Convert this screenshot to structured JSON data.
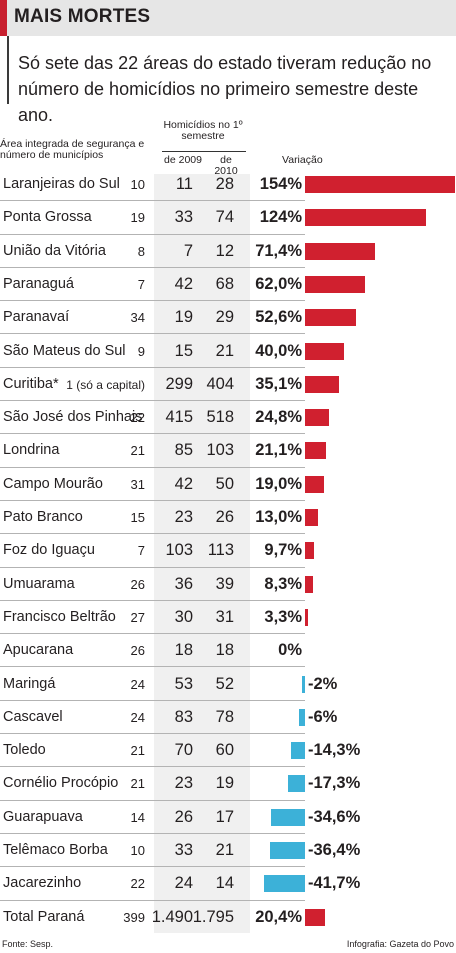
{
  "header": {
    "title": "MAIS MORTES"
  },
  "subtitle": "Só sete das 22 áreas do estado tiveram redução no número de homicídios no primeiro semestre deste ano.",
  "columns": {
    "area": "Área integrada de segurança e número de municípios",
    "homicidios": "Homicídios no 1º semestre",
    "y2009": "de 2009",
    "y2010": "de 2010",
    "variacao": "Variação"
  },
  "colors": {
    "positive": "#d0202f",
    "negative": "#3cb1d8",
    "accent": "#c8202f"
  },
  "chart_data": {
    "type": "bar",
    "title": "MAIS MORTES",
    "categories": [
      "Laranjeiras do Sul",
      "Ponta Grossa",
      "União da Vitória",
      "Paranaguá",
      "Paranavaí",
      "São Mateus do Sul",
      "Curitiba*",
      "São José dos Pinhais",
      "Londrina",
      "Campo Mourão",
      "Pato Branco",
      "Foz do Iguaçu",
      "Umuarama",
      "Francisco Beltrão",
      "Apucarana",
      "Maringá",
      "Cascavel",
      "Toledo",
      "Cornélio Procópio",
      "Guarapuava",
      "Telêmaco Borba",
      "Jacarezinho",
      "Total Paraná"
    ],
    "municipios": [
      "10",
      "19",
      "8",
      "7",
      "34",
      "9",
      "1 (só a capital)",
      "22",
      "21",
      "31",
      "15",
      "7",
      "26",
      "27",
      "26",
      "24",
      "24",
      "21",
      "21",
      "14",
      "10",
      "22",
      "399"
    ],
    "hom_2009": [
      "11",
      "33",
      "7",
      "42",
      "19",
      "15",
      "299",
      "415",
      "85",
      "42",
      "23",
      "103",
      "36",
      "30",
      "18",
      "53",
      "83",
      "70",
      "23",
      "26",
      "33",
      "24",
      "1.490"
    ],
    "hom_2010": [
      "28",
      "74",
      "12",
      "68",
      "29",
      "21",
      "404",
      "518",
      "103",
      "50",
      "26",
      "113",
      "39",
      "31",
      "18",
      "52",
      "78",
      "60",
      "19",
      "17",
      "21",
      "14",
      "1.795"
    ],
    "variacao_labels": [
      "154%",
      "124%",
      "71,4%",
      "62,0%",
      "52,6%",
      "40,0%",
      "35,1%",
      "24,8%",
      "21,1%",
      "19,0%",
      "13,0%",
      "9,7%",
      "8,3%",
      "3,3%",
      "0%",
      "-2%",
      "-6%",
      "-14,3%",
      "-17,3%",
      "-34,6%",
      "-36,4%",
      "-41,7%",
      "20,4%"
    ],
    "values": [
      154,
      124,
      71.4,
      62.0,
      52.6,
      40.0,
      35.1,
      24.8,
      21.1,
      19.0,
      13.0,
      9.7,
      8.3,
      3.3,
      0,
      -2,
      -6,
      -14.3,
      -17.3,
      -34.6,
      -36.4,
      -41.7,
      20.4
    ]
  },
  "footer": {
    "source": "Fonte: Sesp.",
    "credit": "Infografia: Gazeta do Povo"
  }
}
